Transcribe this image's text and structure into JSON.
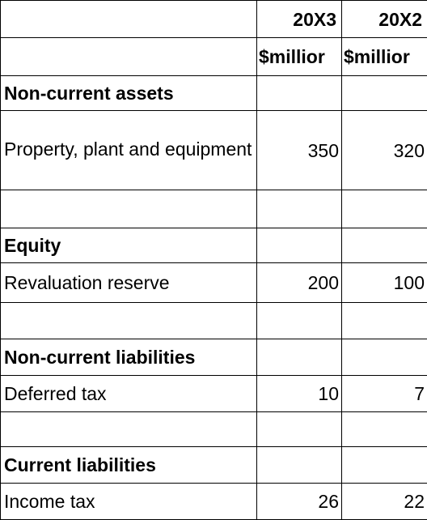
{
  "table": {
    "columns": [
      "20X3",
      "20X2"
    ],
    "units": [
      "$millior",
      "$millior"
    ],
    "rows": [
      {
        "label": "Non-current assets",
        "values": [
          "",
          ""
        ]
      },
      {
        "label": "Property, plant and equipment",
        "values": [
          "350",
          "320"
        ]
      },
      {
        "label": "",
        "values": [
          "",
          ""
        ]
      },
      {
        "label": "Equity",
        "values": [
          "",
          ""
        ]
      },
      {
        "label": "Revaluation reserve",
        "values": [
          "200",
          "100"
        ]
      },
      {
        "label": "",
        "values": [
          "",
          ""
        ]
      },
      {
        "label": "Non-current liabilities",
        "values": [
          "",
          ""
        ]
      },
      {
        "label": "Deferred tax",
        "values": [
          "10",
          "7"
        ]
      },
      {
        "label": "",
        "values": [
          "",
          ""
        ]
      },
      {
        "label": "Current liabilities",
        "values": [
          "",
          ""
        ]
      },
      {
        "label": "Income tax",
        "values": [
          "26",
          "22"
        ]
      }
    ]
  }
}
